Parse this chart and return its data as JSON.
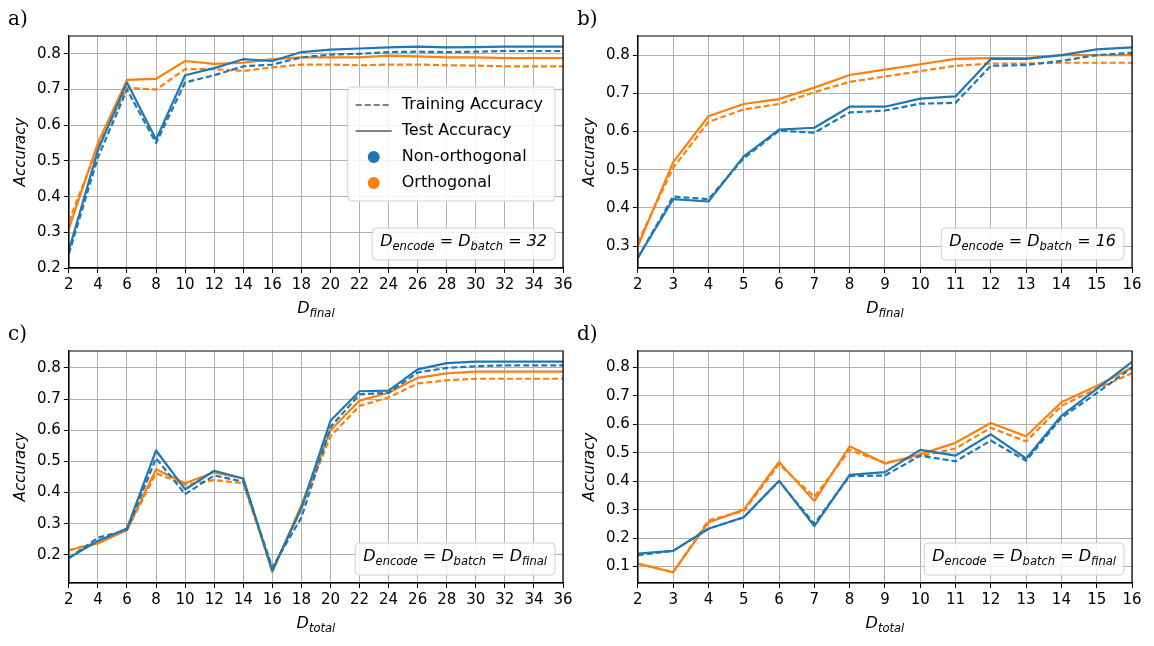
{
  "chart_data": [
    {
      "type": "line",
      "title": "a)",
      "xlabel": "D$_{final}$",
      "ylabel": "Accuracy",
      "x": [
        2,
        4,
        6,
        8,
        10,
        12,
        14,
        16,
        18,
        20,
        22,
        24,
        26,
        28,
        30,
        32,
        34,
        36
      ],
      "xlim": [
        2,
        36
      ],
      "xticks": [
        2,
        4,
        6,
        8,
        10,
        12,
        14,
        16,
        18,
        20,
        22,
        24,
        26,
        28,
        30,
        32,
        34,
        36
      ],
      "ylim": [
        0.2,
        0.85
      ],
      "yticks": [
        0.2,
        0.3,
        0.4,
        0.5,
        0.6,
        0.7,
        0.8
      ],
      "grid": true,
      "legend": "right",
      "annotations": [
        "D$_{encode}$ = D$_{batch}$ = 32"
      ],
      "series": [
        {
          "color": "#1f77b4",
          "line_style": "solid",
          "values": [
            0.25,
            0.53,
            0.72,
            0.56,
            0.74,
            0.76,
            0.785,
            0.78,
            0.805,
            0.812,
            0.815,
            0.818,
            0.82,
            0.818,
            0.819,
            0.82,
            0.82,
            0.82
          ]
        },
        {
          "color": "#1f77b4",
          "line_style": "dashed",
          "values": [
            0.24,
            0.51,
            0.7,
            0.55,
            0.72,
            0.74,
            0.765,
            0.77,
            0.79,
            0.798,
            0.8,
            0.805,
            0.806,
            0.805,
            0.806,
            0.808,
            0.808,
            0.808
          ]
        },
        {
          "color": "#ff7f0e",
          "line_style": "solid",
          "values": [
            0.31,
            0.55,
            0.727,
            0.73,
            0.78,
            0.772,
            0.775,
            0.785,
            0.79,
            0.79,
            0.79,
            0.795,
            0.793,
            0.79,
            0.79,
            0.788,
            0.788,
            0.788
          ]
        },
        {
          "color": "#ff7f0e",
          "line_style": "dashed",
          "values": [
            0.33,
            0.54,
            0.705,
            0.7,
            0.757,
            0.757,
            0.752,
            0.762,
            0.77,
            0.77,
            0.768,
            0.77,
            0.77,
            0.768,
            0.767,
            0.765,
            0.765,
            0.765
          ]
        },
        {
          "name": "Training Accuracy",
          "color": "#808080",
          "line_style": "dashed",
          "values": [
            null,
            null,
            null,
            null,
            null,
            null,
            null,
            null,
            null,
            null,
            null,
            null,
            null,
            null,
            null,
            null,
            null,
            null
          ]
        },
        {
          "name": "Test Accuracy",
          "color": "#808080",
          "line_style": "solid",
          "values": [
            null,
            null,
            null,
            null,
            null,
            null,
            null,
            null,
            null,
            null,
            null,
            null,
            null,
            null,
            null,
            null,
            null,
            null
          ]
        },
        {
          "name": "Non-orthogonal",
          "type": "scatter",
          "marker": "circle",
          "color": "#1f77b4",
          "values": [
            null,
            null,
            null,
            null,
            null,
            null,
            null,
            null,
            null,
            null,
            null,
            null,
            null,
            null,
            null,
            null,
            null,
            null
          ]
        },
        {
          "name": "Orthogonal",
          "type": "scatter",
          "marker": "circle",
          "color": "#ff7f0e",
          "values": [
            null,
            null,
            null,
            null,
            null,
            null,
            null,
            null,
            null,
            null,
            null,
            null,
            null,
            null,
            null,
            null,
            null,
            null
          ]
        }
      ]
    },
    {
      "type": "line",
      "title": "b)",
      "xlabel": "D$_{final}$",
      "ylabel": "Accuracy",
      "x": [
        2,
        3,
        4,
        5,
        6,
        7,
        8,
        9,
        10,
        11,
        12,
        13,
        14,
        15,
        16
      ],
      "xlim": [
        2,
        16
      ],
      "xticks": [
        2,
        3,
        4,
        5,
        6,
        7,
        8,
        9,
        10,
        11,
        12,
        13,
        14,
        15,
        16
      ],
      "ylim": [
        0.243,
        0.85
      ],
      "yticks": [
        0.3,
        0.4,
        0.5,
        0.6,
        0.7,
        0.8
      ],
      "grid": true,
      "annotations": [
        "D$_{encode}$ = D$_{batch}$ = 16"
      ],
      "series": [
        {
          "color": "#1f77b4",
          "line_style": "solid",
          "values": [
            0.27,
            0.423,
            0.417,
            0.535,
            0.605,
            0.61,
            0.665,
            0.665,
            0.686,
            0.692,
            0.79,
            0.79,
            0.8,
            0.815,
            0.82
          ]
        },
        {
          "color": "#1f77b4",
          "line_style": "dashed",
          "values": [
            0.27,
            0.43,
            0.423,
            0.53,
            0.602,
            0.597,
            0.65,
            0.655,
            0.673,
            0.675,
            0.772,
            0.774,
            0.785,
            0.8,
            0.806
          ]
        },
        {
          "color": "#ff7f0e",
          "line_style": "solid",
          "values": [
            0.3,
            0.52,
            0.64,
            0.672,
            0.685,
            0.715,
            0.748,
            0.762,
            0.776,
            0.79,
            0.792,
            0.792,
            0.8,
            0.8,
            0.8
          ]
        },
        {
          "color": "#ff7f0e",
          "line_style": "dashed",
          "values": [
            0.31,
            0.505,
            0.625,
            0.658,
            0.672,
            0.703,
            0.73,
            0.744,
            0.758,
            0.772,
            0.778,
            0.778,
            0.78,
            0.78,
            0.78
          ]
        }
      ]
    },
    {
      "type": "line",
      "title": "c)",
      "xlabel": "D$_{total}$",
      "ylabel": "Accuracy",
      "x": [
        2,
        4,
        6,
        8,
        10,
        12,
        14,
        16,
        18,
        20,
        22,
        24,
        26,
        28,
        30,
        32,
        34,
        36
      ],
      "xlim": [
        2,
        36
      ],
      "xticks": [
        2,
        4,
        6,
        8,
        10,
        12,
        14,
        16,
        18,
        20,
        22,
        24,
        26,
        28,
        30,
        32,
        34,
        36
      ],
      "ylim": [
        0.11,
        0.854
      ],
      "yticks": [
        0.2,
        0.3,
        0.4,
        0.5,
        0.6,
        0.7,
        0.8
      ],
      "grid": true,
      "annotations": [
        "D$_{encode}$ = D$_{batch}$ = D$_{final}$"
      ],
      "series": [
        {
          "color": "#1f77b4",
          "line_style": "solid",
          "values": [
            0.19,
            0.245,
            0.285,
            0.535,
            0.41,
            0.47,
            0.445,
            0.15,
            0.35,
            0.63,
            0.725,
            0.727,
            0.795,
            0.815,
            0.82,
            0.82,
            0.82,
            0.82
          ]
        },
        {
          "color": "#1f77b4",
          "line_style": "dashed",
          "values": [
            0.19,
            0.255,
            0.28,
            0.51,
            0.395,
            0.455,
            0.435,
            0.16,
            0.32,
            0.61,
            0.715,
            0.72,
            0.785,
            0.8,
            0.805,
            0.808,
            0.808,
            0.808
          ]
        },
        {
          "color": "#ff7f0e",
          "line_style": "solid",
          "values": [
            0.215,
            0.237,
            0.28,
            0.475,
            0.43,
            0.465,
            0.445,
            0.145,
            0.36,
            0.6,
            0.695,
            0.72,
            0.768,
            0.782,
            0.788,
            0.788,
            0.788,
            0.788
          ]
        },
        {
          "color": "#ff7f0e",
          "line_style": "dashed",
          "values": [
            0.215,
            0.24,
            0.28,
            0.462,
            0.425,
            0.44,
            0.43,
            0.15,
            0.35,
            0.58,
            0.678,
            0.705,
            0.75,
            0.76,
            0.765,
            0.765,
            0.765,
            0.765
          ]
        }
      ]
    },
    {
      "type": "line",
      "title": "d)",
      "xlabel": "D$_{total}$",
      "ylabel": "Accuracy",
      "x": [
        2,
        3,
        4,
        5,
        6,
        7,
        8,
        9,
        10,
        11,
        12,
        13,
        14,
        15,
        16
      ],
      "xlim": [
        2,
        16
      ],
      "xticks": [
        2,
        3,
        4,
        5,
        6,
        7,
        8,
        9,
        10,
        11,
        12,
        13,
        14,
        15,
        16
      ],
      "ylim": [
        0.042,
        0.858
      ],
      "yticks": [
        0.1,
        0.2,
        0.3,
        0.4,
        0.5,
        0.6,
        0.7,
        0.8
      ],
      "grid": true,
      "annotations": [
        "D$_{encode}$ = D$_{batch}$ = D$_{final}$"
      ],
      "series": [
        {
          "color": "#1f77b4",
          "line_style": "solid",
          "values": [
            0.145,
            0.155,
            0.233,
            0.273,
            0.402,
            0.242,
            0.422,
            0.432,
            0.51,
            0.49,
            0.565,
            0.48,
            0.63,
            0.725,
            0.82
          ]
        },
        {
          "color": "#1f77b4",
          "line_style": "dashed",
          "values": [
            0.14,
            0.155,
            0.233,
            0.273,
            0.4,
            0.25,
            0.418,
            0.42,
            0.49,
            0.47,
            0.543,
            0.472,
            0.623,
            0.71,
            0.8
          ]
        },
        {
          "color": "#ff7f0e",
          "line_style": "solid",
          "values": [
            0.11,
            0.08,
            0.255,
            0.3,
            0.468,
            0.33,
            0.523,
            0.462,
            0.495,
            0.535,
            0.605,
            0.558,
            0.678,
            0.735,
            0.8
          ]
        },
        {
          "color": "#ff7f0e",
          "line_style": "dashed",
          "values": [
            0.11,
            0.08,
            0.262,
            0.295,
            0.46,
            0.345,
            0.51,
            0.465,
            0.488,
            0.515,
            0.588,
            0.54,
            0.665,
            0.725,
            0.78
          ]
        }
      ]
    }
  ]
}
